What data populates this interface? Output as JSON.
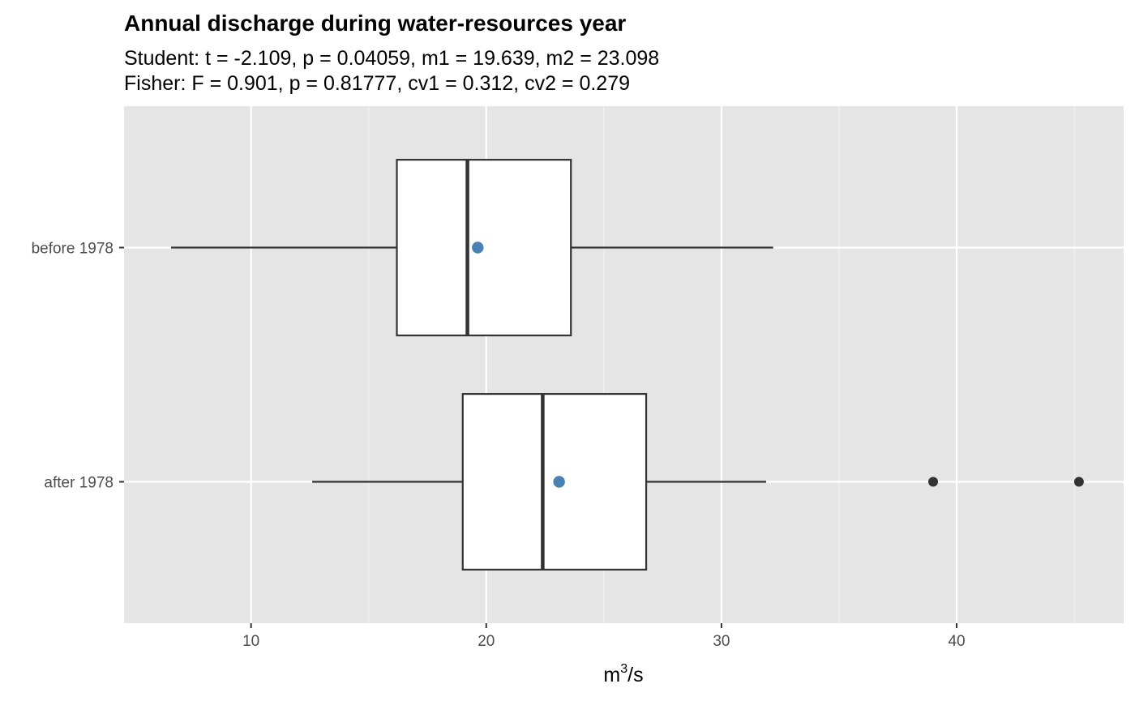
{
  "chart_data": {
    "type": "boxplot",
    "orientation": "horizontal",
    "title": "Annual discharge during water-resources year",
    "subtitle_lines": [
      "Student: t = -2.109, p = 0.04059, m1 = 19.639, m2 = 23.098",
      "Fisher: F = 0.901, p = 0.81777, cv1 = 0.312, cv2 = 0.279"
    ],
    "xlabel": {
      "base": "m",
      "superscript": "3",
      "suffix": "/s"
    },
    "ylabel": "",
    "xlim": [
      4.6,
      47.1
    ],
    "x_ticks": [
      10,
      20,
      30,
      40
    ],
    "x_tick_labels": [
      "10",
      "20",
      "30",
      "40"
    ],
    "x_minor_ticks": [
      15,
      25,
      35,
      45
    ],
    "categories": [
      "before 1978",
      "after 1978"
    ],
    "boxes": [
      {
        "category": "before 1978",
        "whisker_low": 6.6,
        "q1": 16.2,
        "median": 19.2,
        "q3": 23.6,
        "whisker_high": 32.2,
        "mean": 19.639,
        "outliers": []
      },
      {
        "category": "after 1978",
        "whisker_low": 12.6,
        "q1": 19.0,
        "median": 22.4,
        "q3": 26.8,
        "whisker_high": 31.9,
        "mean": 23.098,
        "outliers": [
          39.0,
          45.2
        ]
      }
    ],
    "grid": true,
    "legend": "none",
    "colors": {
      "panel_background": "#e5e5e5",
      "grid_major": "#ffffff",
      "grid_minor": "#f2f2f2",
      "box_fill": "#ffffff",
      "box_outline": "#333333",
      "mean_point": "#4682b4",
      "outlier_point": "#333333"
    }
  }
}
